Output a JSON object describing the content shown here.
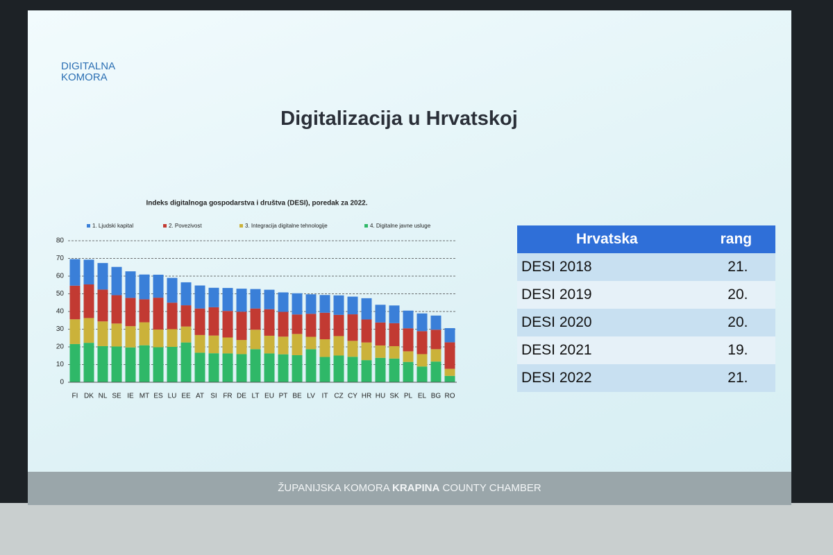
{
  "slide": {
    "logo": {
      "line1": "DIGITALNA",
      "line2": "KOMORA"
    },
    "title": "Digitalizacija u Hrvatskoj",
    "footer": {
      "left": "ŽUPANIJSKA KOMORA",
      "bold": "KRAPINA",
      "right": "COUNTY CHAMBER"
    }
  },
  "chart_data": {
    "type": "stacked_bar",
    "title": "Indeks digitalnoga gospodarstva i društva (DESI), poredak za 2022.",
    "categories": [
      "FI",
      "DK",
      "NL",
      "SE",
      "IE",
      "MT",
      "ES",
      "LU",
      "EE",
      "AT",
      "SI",
      "FR",
      "DE",
      "LT",
      "EU",
      "PT",
      "BE",
      "LV",
      "IT",
      "CZ",
      "CY",
      "HR",
      "HU",
      "SK",
      "PL",
      "EL",
      "BG",
      "RO"
    ],
    "series": [
      {
        "name": "1. Ljudski kapital",
        "color": "#3a7fd8",
        "values": [
          15,
          14,
          15,
          16,
          15,
          14,
          13,
          14,
          13,
          13,
          11,
          13,
          13,
          11,
          11,
          11,
          12,
          11,
          10,
          11,
          10,
          12,
          10,
          10,
          10,
          10,
          8,
          8
        ]
      },
      {
        "name": "2. Povezivost",
        "color": "#c23a32",
        "values": [
          19,
          19,
          18,
          16,
          16,
          13,
          18,
          15,
          12,
          15,
          16,
          15,
          16,
          12,
          15,
          14,
          11,
          13,
          15,
          12,
          15,
          13,
          13,
          13,
          13,
          13,
          11,
          15
        ]
      },
      {
        "name": "3. Integracija digitalne tehnologije",
        "color": "#cbb23a",
        "values": [
          14,
          14,
          14,
          13,
          12,
          13,
          10,
          10,
          9,
          10,
          10,
          9,
          8,
          11,
          10,
          10,
          12,
          7,
          10,
          11,
          9,
          10,
          7,
          7,
          6,
          7,
          7,
          4
        ]
      },
      {
        "name": "4. Digitalne javne usluge",
        "color": "#2fb868",
        "values": [
          21.6,
          22.3,
          20.4,
          20.2,
          19.7,
          20.9,
          19.8,
          20,
          22.5,
          16.7,
          16.4,
          16.3,
          15.9,
          18.7,
          16.3,
          15.8,
          15.3,
          18.7,
          14.3,
          15.1,
          14.4,
          12.5,
          13.8,
          13.4,
          11.5,
          8.9,
          11.7,
          3.6
        ]
      }
    ],
    "ylim": [
      0,
      80
    ],
    "yticks": [
      0,
      10,
      20,
      30,
      40,
      50,
      60,
      70,
      80
    ],
    "grid": true
  },
  "table": {
    "header": [
      "Hrvatska",
      "rang"
    ],
    "rows": [
      [
        "DESI 2018",
        "21."
      ],
      [
        "DESI 2019",
        "20."
      ],
      [
        "DESI 2020",
        "20."
      ],
      [
        "DESI 2021",
        "19."
      ],
      [
        "DESI 2022",
        "21."
      ]
    ]
  }
}
